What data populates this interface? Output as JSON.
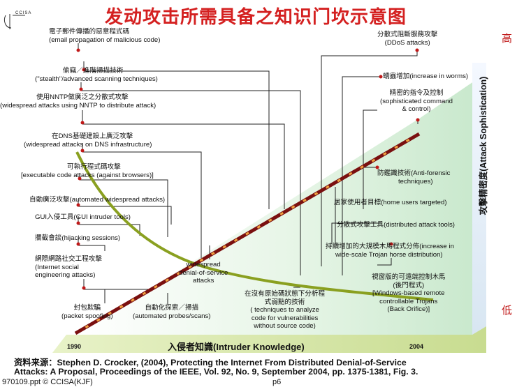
{
  "title": "发动攻击所需具备之知识门坎示意图",
  "logo_text": "CCISA",
  "axis": {
    "high": "高",
    "low": "低",
    "y_label": "攻擊精密度(Attack Sophistication)",
    "x_label": "入侵者知識(Intruder Knowledge)",
    "year_start": "1990",
    "year_end": "2004"
  },
  "colors": {
    "title": "#d42020",
    "sophistication_line": "#b01818",
    "knowledge_curve": "#8aa020",
    "background_band": "#cdebcf"
  },
  "left_labels": [
    {
      "zh": "電子郵件傳播的惡意程式碼",
      "en": "(email propagation of malicious code)"
    },
    {
      "zh": "偷竊／進階掃描技術",
      "en": "(\"stealth\"/advanced scanning techniques)"
    },
    {
      "zh": "使用NNTP做廣泛之分散式攻擊",
      "en": "(widespread attacks using NNTP to distribute attack)"
    },
    {
      "zh": "在DNS基礎建設上廣泛攻擊",
      "en": "(widespread attacks on DNS infrastructure)"
    },
    {
      "zh": "可執行程式碼攻擊",
      "en": "[executable code attacks (against browsers)]"
    },
    {
      "zh": "自動廣泛攻擊(automated widespread attacks)",
      "en": ""
    },
    {
      "zh": "GUI入侵工具(GUI intruder tools)",
      "en": ""
    },
    {
      "zh": "攔截會談(hijacking sessions)",
      "en": ""
    },
    {
      "zh": "網際網路社交工程攻擊",
      "en": "(Internet social\nengineering attacks)"
    }
  ],
  "right_labels": [
    {
      "zh": "分散式阻斷服務攻擊",
      "en": "(DDoS attacks)"
    },
    {
      "zh": "蠕蟲增加(increase in worms)",
      "en": ""
    },
    {
      "zh": "精密的指令及控制",
      "en": "(sophisticated command\n& control)"
    },
    {
      "zh": "防鑑識技術(Anti-forensic",
      "en": "techniques)"
    },
    {
      "zh": "居家使用者目標(home users targeted)",
      "en": ""
    },
    {
      "zh": "分散式攻擊工具(distributed attack tools)",
      "en": ""
    },
    {
      "zh": "持續增加的大規模木馬程式分佈(increase in",
      "en": "wide-scale Trojan horse distribution)"
    },
    {
      "zh": "視窗版的可遠端控制木馬",
      "en": "(後門程式)\n[Windows-based remote\ncontrollable Trojans\n(Back Orifice)]"
    }
  ],
  "bottom_labels": [
    {
      "zh": "封包欺騙",
      "en": "(packet spoofing)"
    },
    {
      "zh": "自動化探索／掃描",
      "en": "(automated probes/scans)"
    },
    {
      "zh": "widespread",
      "en": "denial-of-service\nattacks"
    },
    {
      "zh": "在沒有原始碼狀態下分析程",
      "en": "式弱點的技術\n( techniques to analyze\ncode for vulnerabilities\nwithout source code)"
    }
  ],
  "source": {
    "line1": "资料来源：Stephen D. Crocker, (2004), Protecting the Internet From Distributed Denial-of-Service",
    "line2": "Attacks: A Proposal, Proceedings of the IEEE, Vol. 92,  No. 9, September 2004, pp. 1375-1381, Fig. 3."
  },
  "footer": {
    "left": "970109.ppt © CCISA(KJF)",
    "right": "p6"
  }
}
